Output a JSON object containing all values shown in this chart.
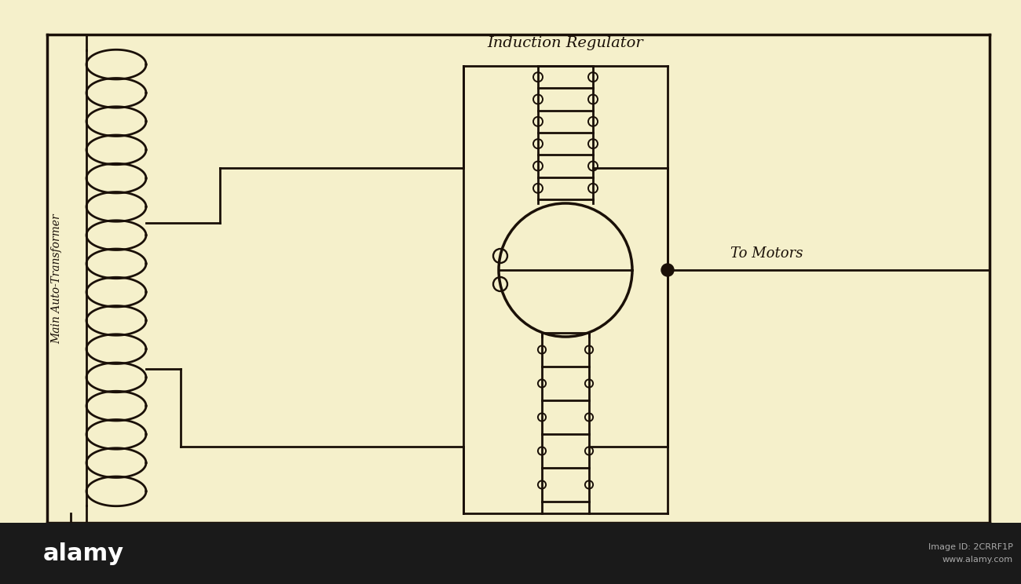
{
  "bg_color": "#f5f0cb",
  "line_color": "#1a1008",
  "fig_width": 13.0,
  "fig_height": 7.44,
  "title": "Induction Regulator",
  "label_auto_transformer": "Main Auto-Transformer",
  "label_to_motors": "To Motors",
  "border_color": "#1a1008",
  "alamy_bg": "#1a1a1a",
  "alamy_text": "#ffffff",
  "alamy_info": "#aaaaaa"
}
